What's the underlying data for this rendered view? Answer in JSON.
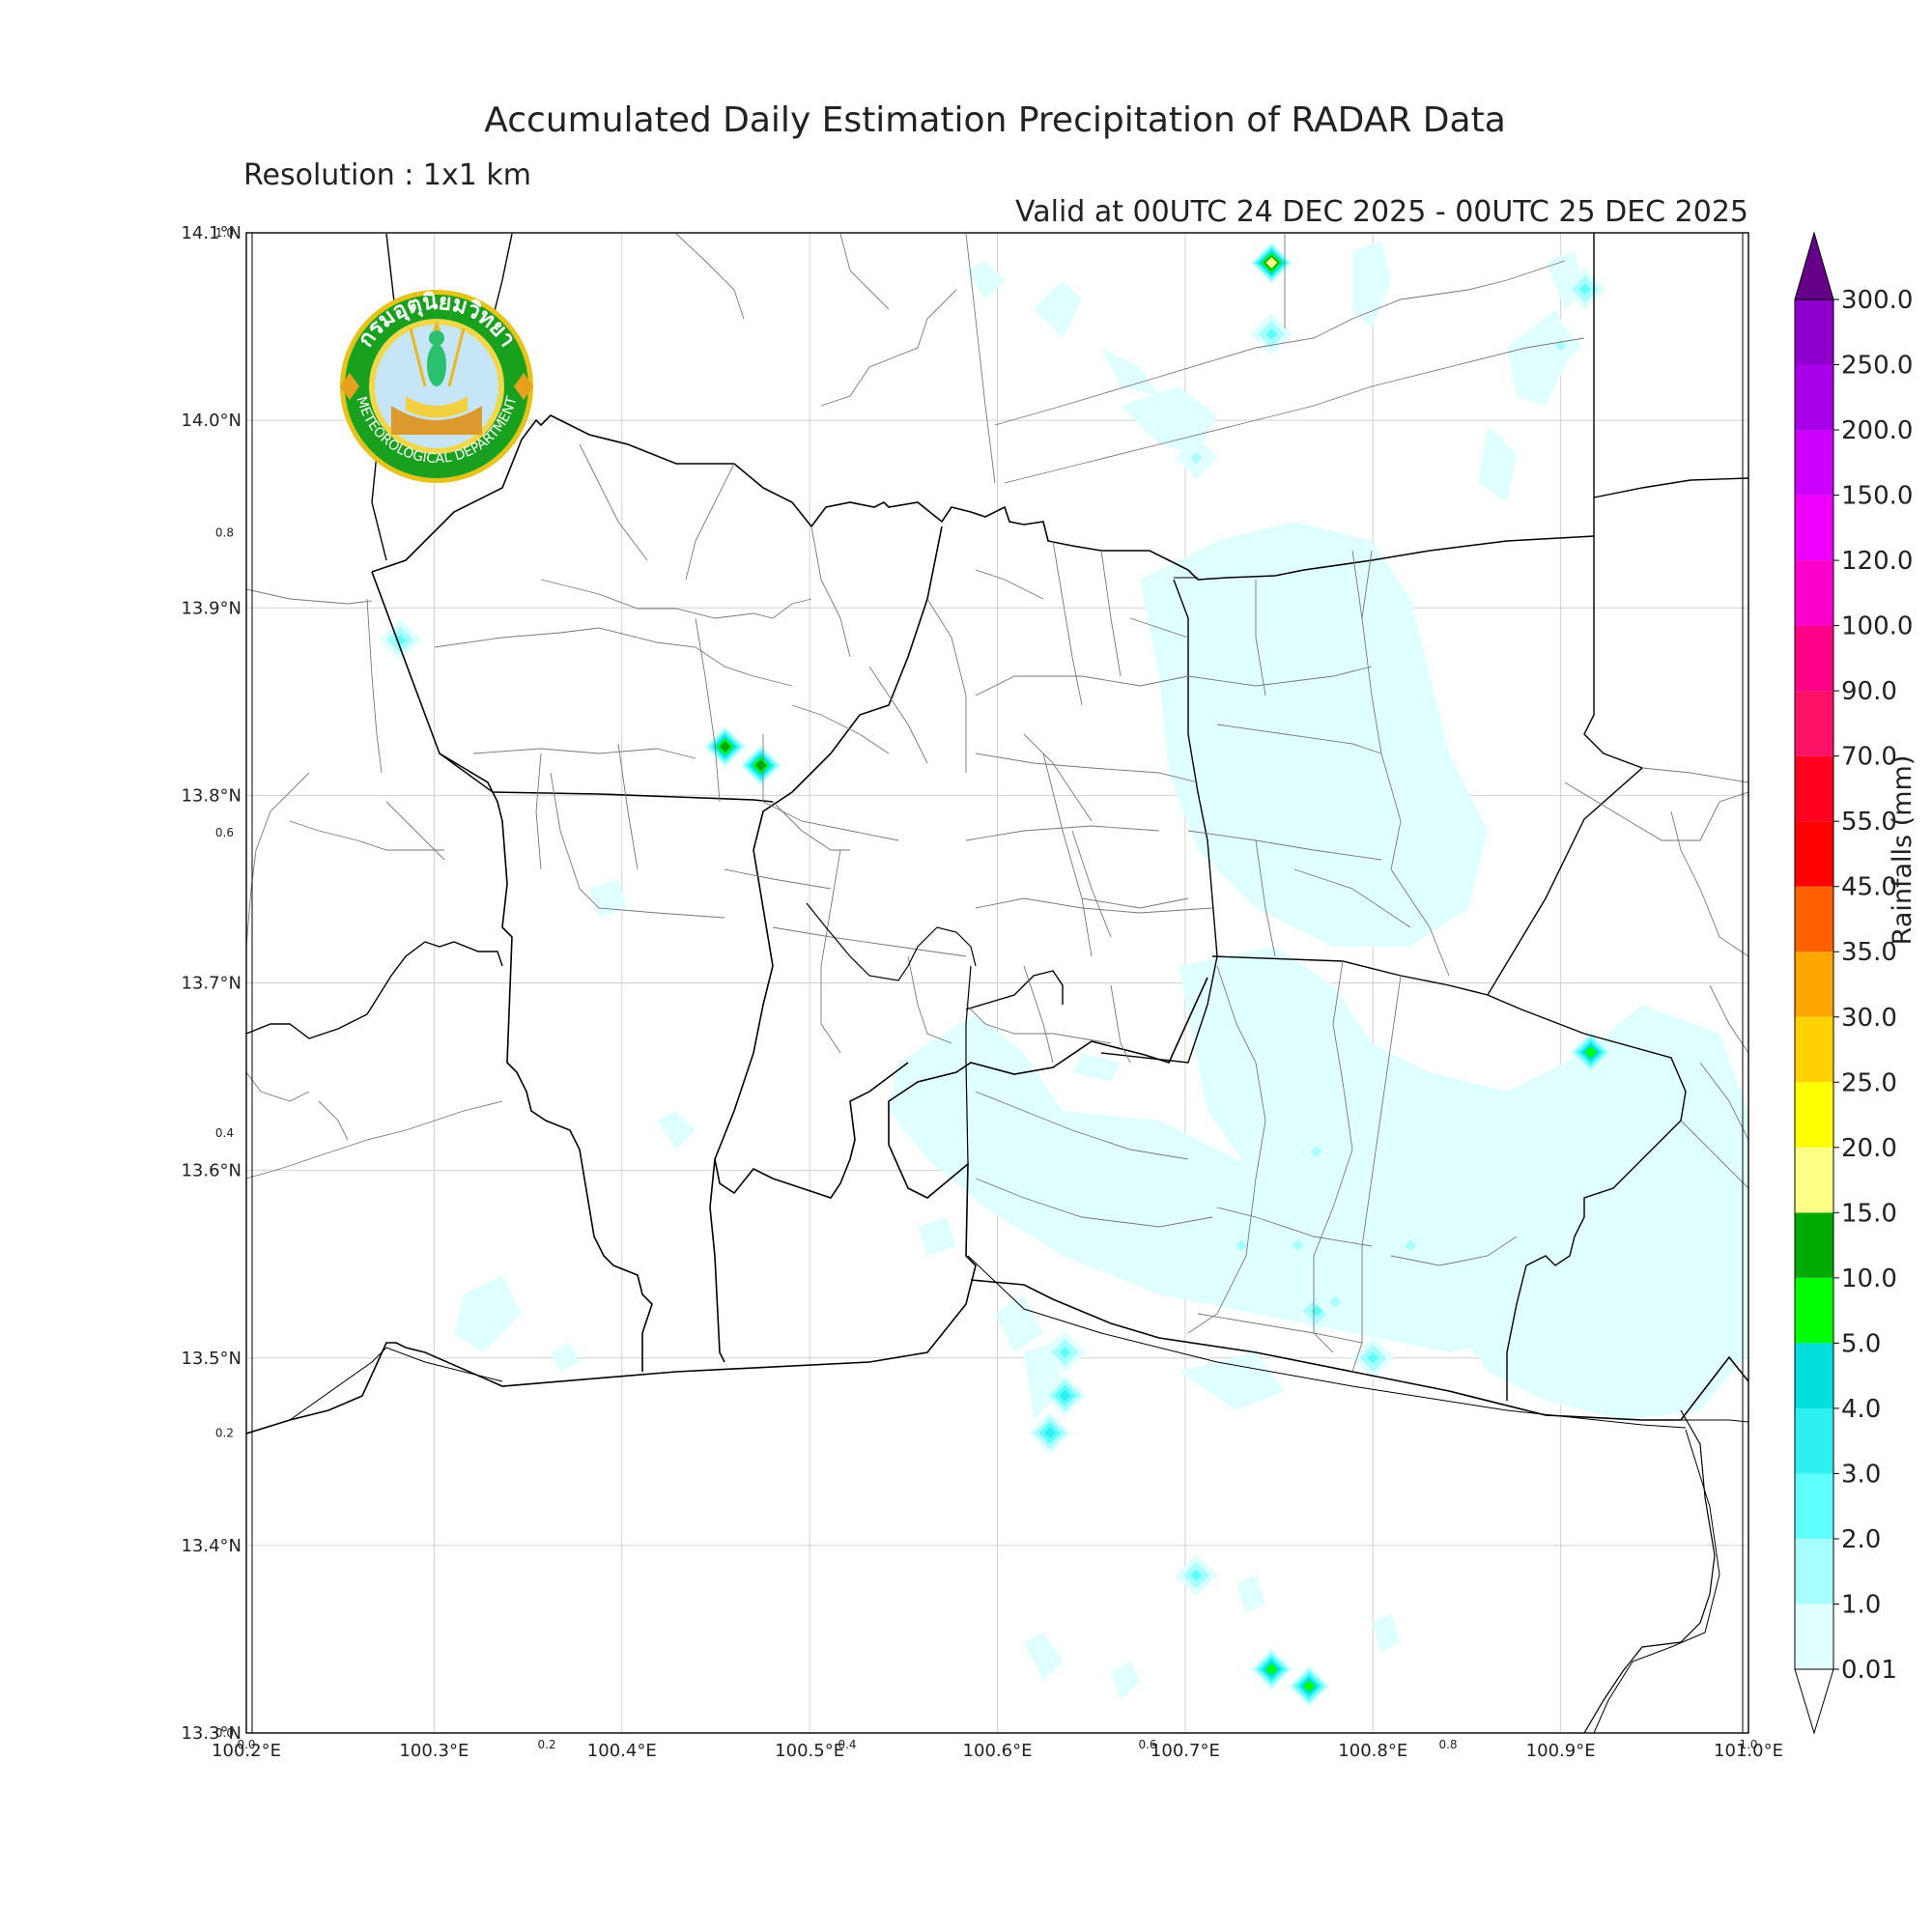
{
  "header": {
    "title": "Accumulated Daily Estimation Precipitation of RADAR Data",
    "resolution": "Resolution : 1x1 km",
    "valid": "Valid at 00UTC 24 DEC 2025 - 00UTC 25 DEC 2025"
  },
  "logo": {
    "top_text": "กรมอุตุนิยมวิทยา",
    "bottom_text": "METEOROLOGICAL DEPARTMENT"
  },
  "axes": {
    "lon_ticks": [
      "100.2°E",
      "100.3°E",
      "100.4°E",
      "100.5°E",
      "100.6°E",
      "100.7°E",
      "100.8°E",
      "100.9°E",
      "101.0°E"
    ],
    "lat_ticks": [
      "13.3°N",
      "13.4°N",
      "13.5°N",
      "13.6°N",
      "13.7°N",
      "13.8°N",
      "13.9°N",
      "14.0°N",
      "14.1°N"
    ],
    "frac_x_ticks": [
      "0.0",
      "0.2",
      "0.4",
      "0.6",
      "0.8",
      "1.0"
    ],
    "frac_y_ticks": [
      "0.0",
      "0.2",
      "0.4",
      "0.6",
      "0.8",
      "1.0"
    ]
  },
  "colorbar": {
    "title": "Rainfalls (mm)",
    "levels": [
      "0.01",
      "1.0",
      "2.0",
      "3.0",
      "4.0",
      "5.0",
      "10.0",
      "15.0",
      "20.0",
      "25.0",
      "30.0",
      "35.0",
      "45.0",
      "55.0",
      "70.0",
      "90.0",
      "100.0",
      "120.0",
      "150.0",
      "200.0",
      "250.0",
      "300.0"
    ],
    "colors": [
      "#e0ffff",
      "#a8ffff",
      "#60ffff",
      "#2ef0f0",
      "#00dddd",
      "#00ff00",
      "#00aa00",
      "#ffff88",
      "#ffff00",
      "#ffd200",
      "#ffa500",
      "#ff6000",
      "#ff0000",
      "#ff0022",
      "#ff1166",
      "#ff0088",
      "#ff00cc",
      "#ee00ff",
      "#cc00ff",
      "#a800e8",
      "#9000cc",
      "#660088"
    ]
  },
  "rain_cells": [
    {
      "lon": 100.746,
      "lat": 14.084,
      "level": 7
    },
    {
      "lon": 100.746,
      "lat": 14.046,
      "level": 2
    },
    {
      "lon": 100.282,
      "lat": 13.883,
      "level": 2
    },
    {
      "lon": 100.455,
      "lat": 13.826,
      "level": 6
    },
    {
      "lon": 100.474,
      "lat": 13.816,
      "level": 6
    },
    {
      "lon": 100.916,
      "lat": 13.663,
      "level": 5
    },
    {
      "lon": 100.746,
      "lat": 13.334,
      "level": 5
    },
    {
      "lon": 100.766,
      "lat": 13.325,
      "level": 5
    },
    {
      "lon": 100.636,
      "lat": 13.48,
      "level": 3
    },
    {
      "lon": 100.628,
      "lat": 13.46,
      "level": 3
    },
    {
      "lon": 100.636,
      "lat": 13.503,
      "level": 2
    },
    {
      "lon": 100.706,
      "lat": 13.384,
      "level": 2
    },
    {
      "lon": 100.913,
      "lat": 14.07,
      "level": 2
    },
    {
      "lon": 100.77,
      "lat": 13.525,
      "level": 2
    },
    {
      "lon": 100.8,
      "lat": 13.5,
      "level": 2
    },
    {
      "lon": 100.706,
      "lat": 13.98,
      "level": 1
    },
    {
      "lon": 100.77,
      "lat": 13.61,
      "level": 1
    },
    {
      "lon": 100.73,
      "lat": 13.56,
      "level": 1
    },
    {
      "lon": 100.76,
      "lat": 13.56,
      "level": 1
    },
    {
      "lon": 100.78,
      "lat": 13.53,
      "level": 1
    },
    {
      "lon": 100.82,
      "lat": 13.56,
      "level": 1
    },
    {
      "lon": 100.9,
      "lat": 14.04,
      "level": 1
    }
  ]
}
